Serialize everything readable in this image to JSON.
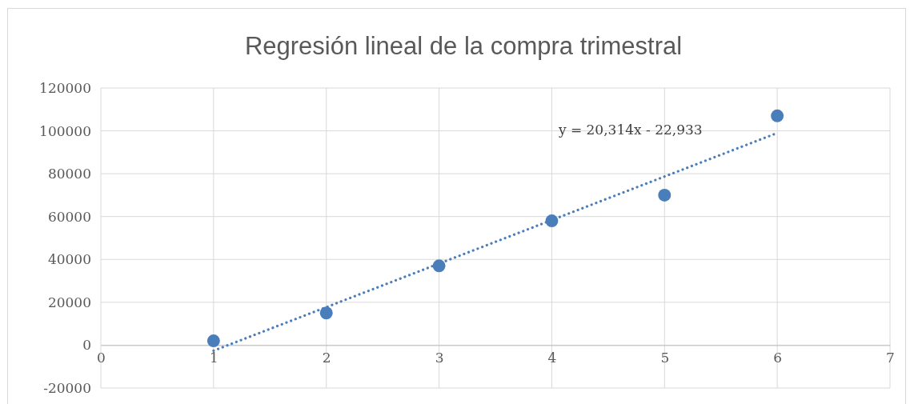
{
  "chart_data": {
    "type": "scatter",
    "title": "Regresión lineal de la compra trimestral",
    "x": [
      1,
      2,
      3,
      4,
      5,
      6
    ],
    "series": [
      {
        "color": "#4a7ebb",
        "values": [
          2000,
          15000,
          37000,
          58000,
          70000,
          107000
        ],
        "marker": "circle"
      },
      {
        "type": "line",
        "color": "#4a7ebb",
        "x": [
          1,
          6
        ],
        "values": [
          -2600,
          99000
        ],
        "marker": "none",
        "line_style": "dotted"
      }
    ],
    "xlim": [
      0,
      7
    ],
    "xticks": [
      0,
      1,
      2,
      3,
      4,
      5,
      6,
      7
    ],
    "ylim": [
      -20000,
      120000
    ],
    "yticks": [
      -20000,
      0,
      20000,
      40000,
      60000,
      80000,
      100000,
      120000
    ],
    "grid": true,
    "annotations": [
      "y = 20,314x - 22,933"
    ]
  }
}
